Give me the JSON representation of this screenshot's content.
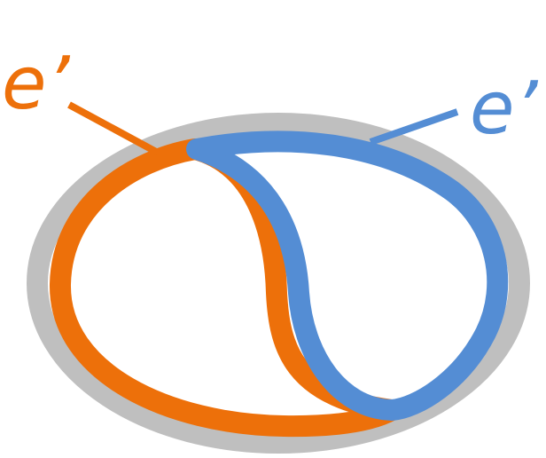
{
  "labels": {
    "orange_label": "e’",
    "blue_label": "e’"
  },
  "colors": {
    "outer_ellipse": "#bfbfbf",
    "orange": "#ed700a",
    "blue": "#548dd4",
    "background": "#ffffff"
  }
}
